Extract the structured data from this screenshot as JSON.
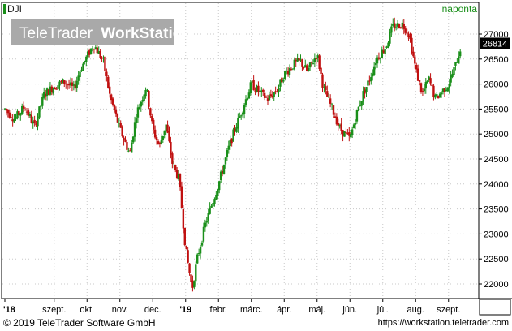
{
  "window": {
    "symbol": "DJI",
    "interval": "naponta",
    "watermark_brand": "TeleTrader",
    "watermark_product": "WorkStation",
    "copyright": "© 2019 TeleTrader Software GmbH",
    "url": "https://workstation.teletrader.com"
  },
  "colors": {
    "up": "#1a8f1a",
    "down": "#c01010",
    "background": "#ffffff",
    "grid": "#c8c8c8",
    "axis": "#000000",
    "watermark_bg": "#a9a9a9",
    "last_value_bg": "#000000"
  },
  "chart_data": {
    "type": "candlestick",
    "title": "DJI",
    "interval": "naponta",
    "last_value": "26814",
    "ylim": [
      21600,
      27400
    ],
    "y_ticks": [
      "22000",
      "22500",
      "23000",
      "23500",
      "24000",
      "24500",
      "25000",
      "25500",
      "26000",
      "26500",
      "27000"
    ],
    "x_ticks": [
      {
        "label": "'18",
        "month": 0.0
      },
      {
        "label": "szept.",
        "month": 1.5
      },
      {
        "label": "okt.",
        "month": 2.5
      },
      {
        "label": "nov.",
        "month": 3.5
      },
      {
        "label": "dec.",
        "month": 4.5
      },
      {
        "label": "'19",
        "month": 5.5
      },
      {
        "label": "febr.",
        "month": 6.5
      },
      {
        "label": "márc.",
        "month": 7.5
      },
      {
        "label": "ápr.",
        "month": 8.5
      },
      {
        "label": "máj.",
        "month": 9.5
      },
      {
        "label": "jún.",
        "month": 10.5
      },
      {
        "label": "júl.",
        "month": 11.5
      },
      {
        "label": "aug.",
        "month": 12.5
      },
      {
        "label": "szept.",
        "month": 13.5
      }
    ],
    "grid": true,
    "price_trend": [
      [
        0.0,
        25500
      ],
      [
        0.3,
        25300
      ],
      [
        0.6,
        25550
      ],
      [
        0.9,
        25150
      ],
      [
        1.2,
        25800
      ],
      [
        1.5,
        25950
      ],
      [
        1.8,
        26050
      ],
      [
        2.1,
        25900
      ],
      [
        2.3,
        26300
      ],
      [
        2.5,
        26550
      ],
      [
        2.7,
        26800
      ],
      [
        3.0,
        26450
      ],
      [
        3.2,
        25750
      ],
      [
        3.5,
        25100
      ],
      [
        3.8,
        24600
      ],
      [
        4.0,
        25400
      ],
      [
        4.3,
        25950
      ],
      [
        4.5,
        25100
      ],
      [
        4.7,
        24750
      ],
      [
        4.9,
        25200
      ],
      [
        5.1,
        24400
      ],
      [
        5.3,
        24100
      ],
      [
        5.5,
        22700
      ],
      [
        5.7,
        21900
      ],
      [
        5.85,
        22500
      ],
      [
        6.1,
        23200
      ],
      [
        6.3,
        23600
      ],
      [
        6.5,
        24000
      ],
      [
        6.8,
        24700
      ],
      [
        7.0,
        25100
      ],
      [
        7.2,
        25450
      ],
      [
        7.5,
        26000
      ],
      [
        7.8,
        25800
      ],
      [
        8.0,
        25700
      ],
      [
        8.3,
        25900
      ],
      [
        8.5,
        26200
      ],
      [
        8.8,
        26400
      ],
      [
        9.0,
        26450
      ],
      [
        9.2,
        26250
      ],
      [
        9.5,
        26600
      ],
      [
        9.7,
        25900
      ],
      [
        9.9,
        25600
      ],
      [
        10.2,
        25100
      ],
      [
        10.5,
        24900
      ],
      [
        10.7,
        25400
      ],
      [
        10.9,
        25800
      ],
      [
        11.1,
        26100
      ],
      [
        11.3,
        26500
      ],
      [
        11.6,
        26750
      ],
      [
        11.8,
        27150
      ],
      [
        12.1,
        27200
      ],
      [
        12.3,
        27000
      ],
      [
        12.5,
        26300
      ],
      [
        12.7,
        25800
      ],
      [
        12.9,
        26100
      ],
      [
        13.1,
        25700
      ],
      [
        13.3,
        25850
      ],
      [
        13.5,
        26000
      ],
      [
        13.7,
        26350
      ],
      [
        13.9,
        26814
      ]
    ],
    "candles_per_month": 21
  }
}
